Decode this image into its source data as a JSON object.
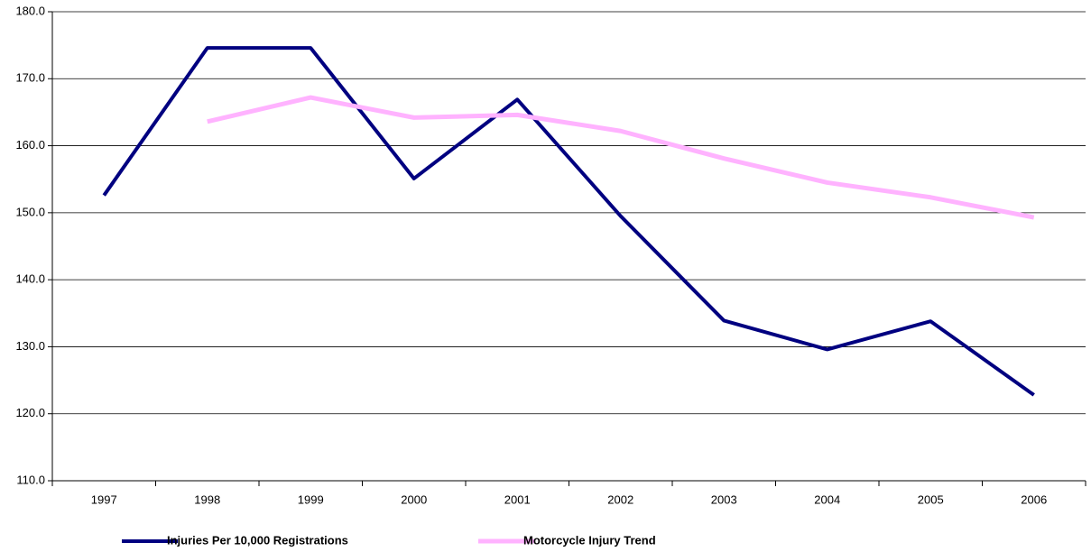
{
  "chart_data": {
    "type": "line",
    "categories": [
      "1997",
      "1998",
      "1999",
      "2000",
      "2001",
      "2002",
      "2003",
      "2004",
      "2005",
      "2006"
    ],
    "series": [
      {
        "name": "Injuries Per 10,000 Registrations",
        "color": "#000080",
        "values": [
          152.6,
          174.6,
          174.6,
          155.1,
          166.9,
          149.5,
          133.9,
          129.6,
          133.8,
          122.8
        ]
      },
      {
        "name": "Motorcycle Injury Trend",
        "color": "#ffb3ff",
        "values": [
          null,
          163.6,
          167.2,
          164.2,
          164.6,
          162.2,
          158.1,
          154.5,
          152.3,
          149.3
        ]
      }
    ],
    "ylim": [
      110,
      180
    ],
    "yticks": [
      {
        "value": 110,
        "label": "110.0"
      },
      {
        "value": 120,
        "label": "120.0"
      },
      {
        "value": 130,
        "label": "130.0"
      },
      {
        "value": 140,
        "label": "140.0"
      },
      {
        "value": 150,
        "label": "150.0"
      },
      {
        "value": 160,
        "label": "160.0"
      },
      {
        "value": 170,
        "label": "170.0"
      },
      {
        "value": 180,
        "label": "180.0"
      }
    ],
    "grid": true,
    "legend": "bottom"
  }
}
